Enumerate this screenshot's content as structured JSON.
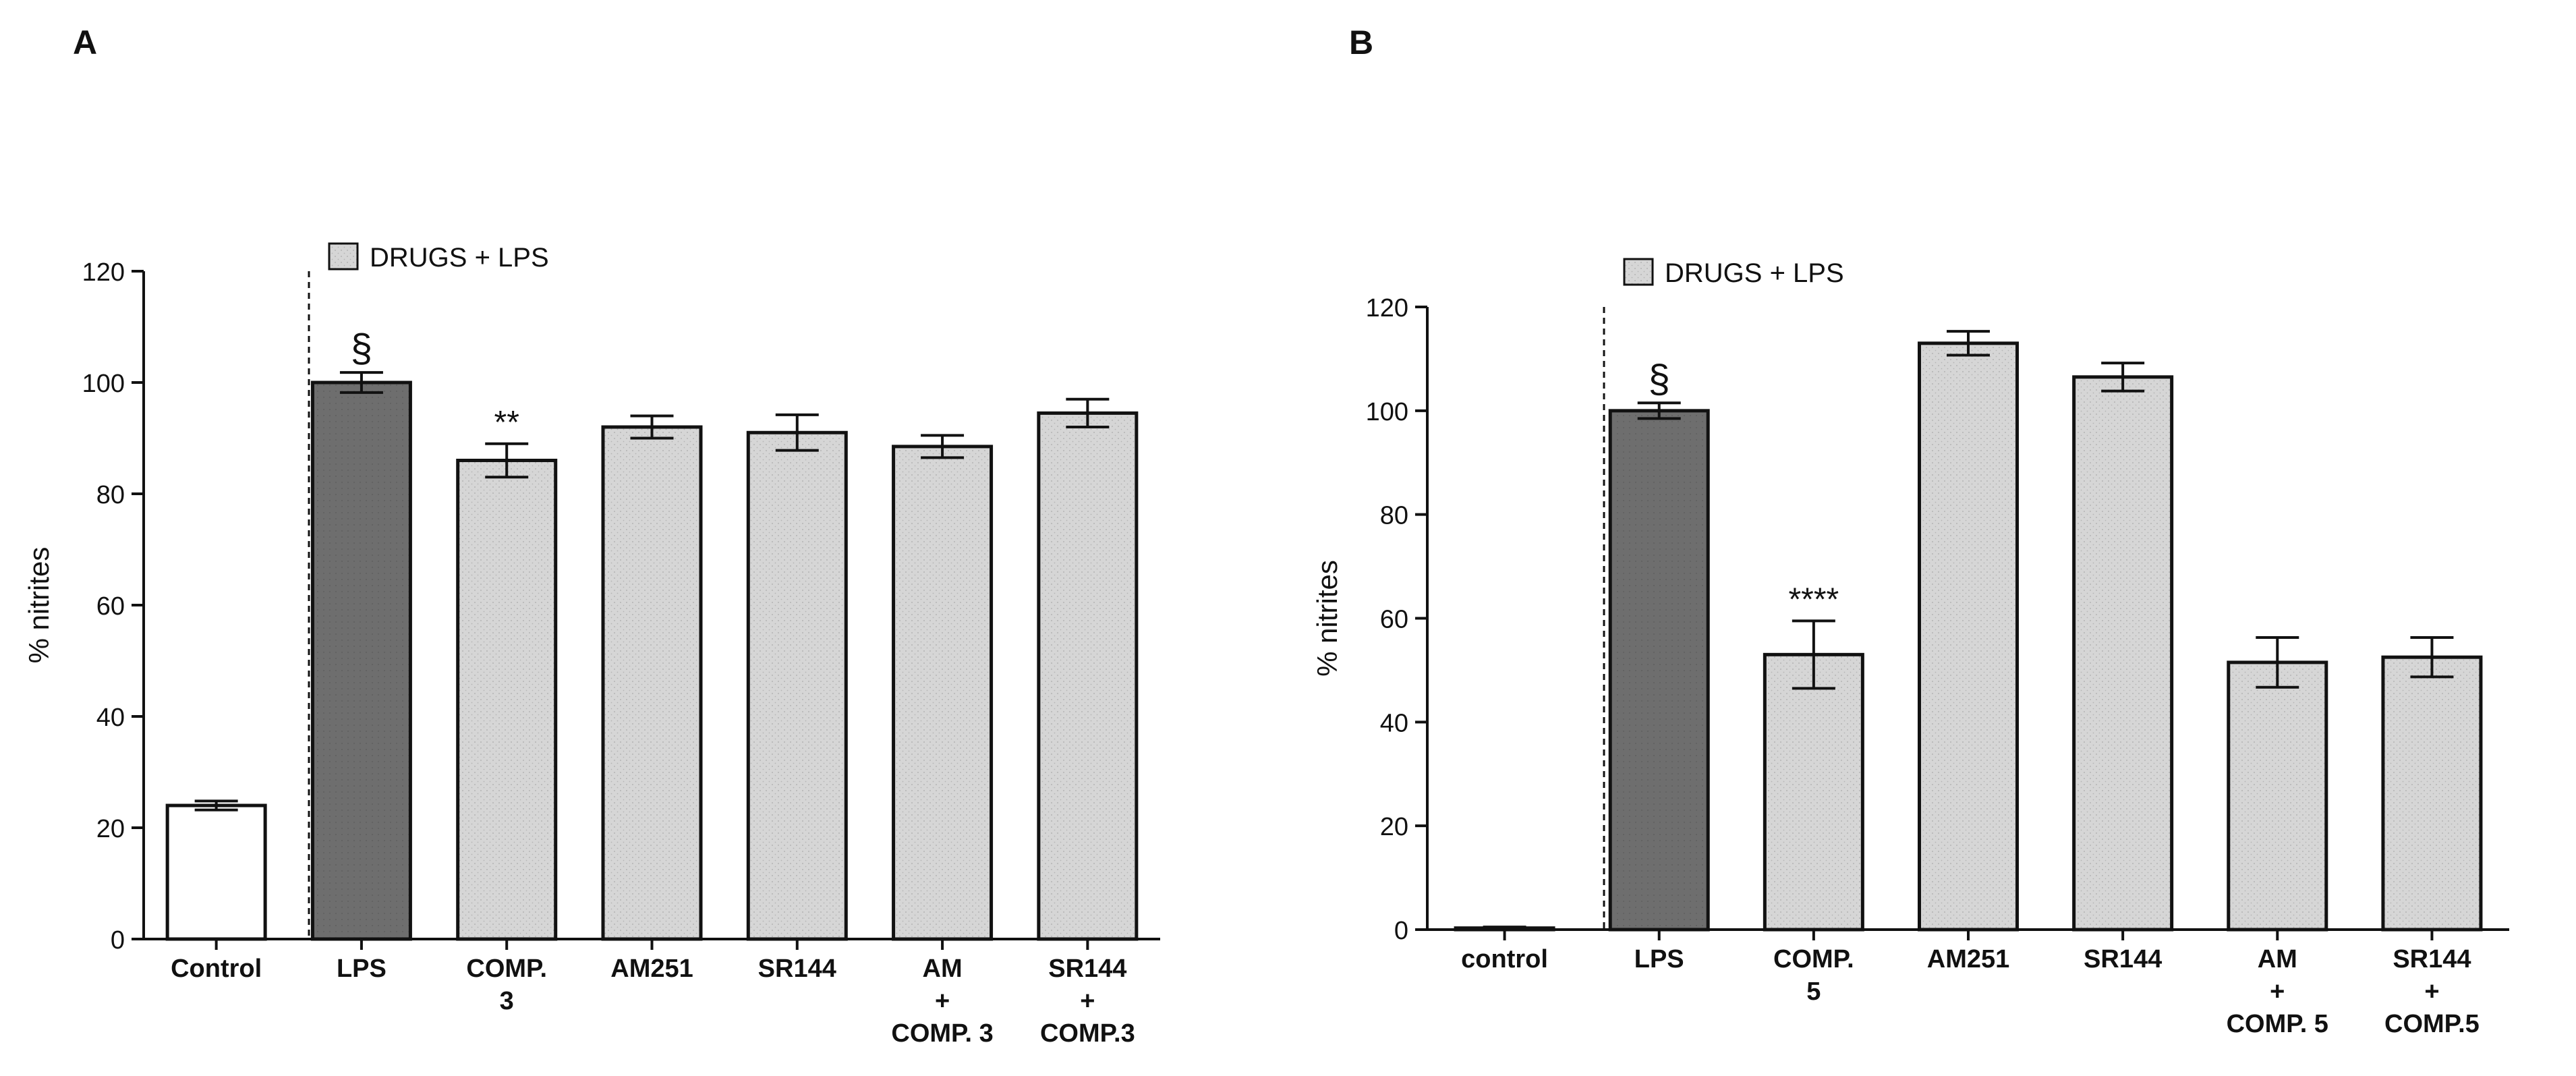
{
  "colors": {
    "control_bar": "#ffffff",
    "lps_bar": "#6e6e6e",
    "drug_bar": "#d6d6d6",
    "axis": "#111111"
  },
  "chart_data": [
    {
      "panel_label": "A",
      "type": "bar",
      "ylabel": "% nitrites",
      "ylim": [
        0,
        120
      ],
      "yticks": [
        0,
        20,
        40,
        60,
        80,
        100,
        120
      ],
      "legend": "DRUGS + LPS",
      "categories": [
        [
          "Control"
        ],
        [
          "LPS"
        ],
        [
          "COMP.",
          "3"
        ],
        [
          "AM251"
        ],
        [
          "SR144"
        ],
        [
          "AM",
          "+",
          "COMP. 3"
        ],
        [
          "SR144",
          "+",
          "COMP.3"
        ]
      ],
      "values": [
        24,
        100,
        86,
        92,
        91,
        88.5,
        94.5
      ],
      "errors": [
        0.8,
        1.8,
        3,
        2,
        3.2,
        2,
        2.5
      ],
      "fills": [
        "control",
        "lps",
        "drug",
        "drug",
        "drug",
        "drug",
        "drug"
      ],
      "annotations": [
        "",
        "§",
        "**",
        "",
        "",
        "",
        ""
      ]
    },
    {
      "panel_label": "B",
      "type": "bar",
      "ylabel": "% nitrites",
      "ylim": [
        0,
        120
      ],
      "yticks": [
        0,
        20,
        40,
        60,
        80,
        100,
        120
      ],
      "legend": "DRUGS + LPS",
      "categories": [
        [
          "control"
        ],
        [
          "LPS"
        ],
        [
          "COMP.",
          "5"
        ],
        [
          "AM251"
        ],
        [
          "SR144"
        ],
        [
          "AM",
          "+",
          "COMP. 5"
        ],
        [
          "SR144",
          "+",
          "COMP.5"
        ]
      ],
      "values": [
        0.3,
        100,
        53,
        113,
        106.5,
        51.5,
        52.5
      ],
      "errors": [
        0.2,
        1.5,
        6.5,
        2.3,
        2.7,
        4.8,
        3.8
      ],
      "fills": [
        "control",
        "lps",
        "drug",
        "drug",
        "drug",
        "drug",
        "drug"
      ],
      "annotations": [
        "",
        "§",
        "****",
        "",
        "",
        "",
        ""
      ]
    }
  ]
}
